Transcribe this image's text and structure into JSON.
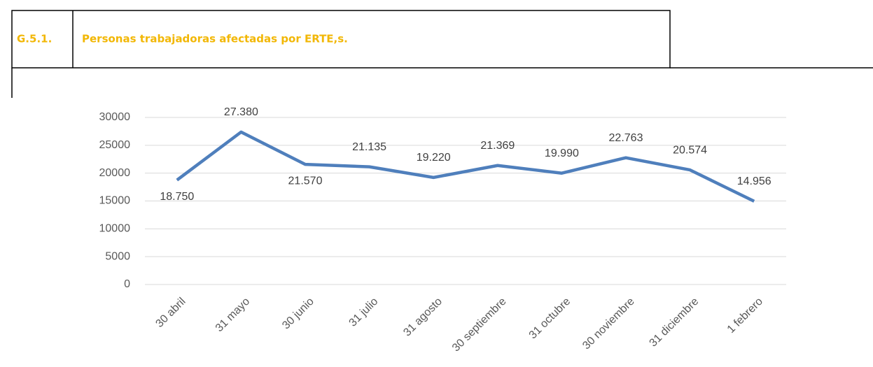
{
  "header": {
    "code": "G.5.1.",
    "title": "Personas trabajadoras afectadas por ERTE,s."
  },
  "chart_data": {
    "type": "line",
    "categories": [
      "30 abril",
      "31 mayo",
      "30 junio",
      "31 julio",
      "31 agosto",
      "30 septiembre",
      "31 octubre",
      "30 noviembre",
      "31 diciembre",
      "1 febrero"
    ],
    "series": [
      {
        "name": null,
        "color": "#4f7fbc",
        "values": [
          18750,
          27380,
          21570,
          21135,
          19220,
          21369,
          19990,
          22763,
          20574,
          14956
        ],
        "value_labels": [
          "18.750",
          "27.380",
          "21.570",
          "21.135",
          "19.220",
          "21.369",
          "19.990",
          "22.763",
          "20.574",
          "14.956"
        ]
      }
    ],
    "ylim": [
      0,
      30000
    ],
    "yticks": [
      0,
      5000,
      10000,
      15000,
      20000,
      25000,
      30000
    ],
    "grid": true
  }
}
